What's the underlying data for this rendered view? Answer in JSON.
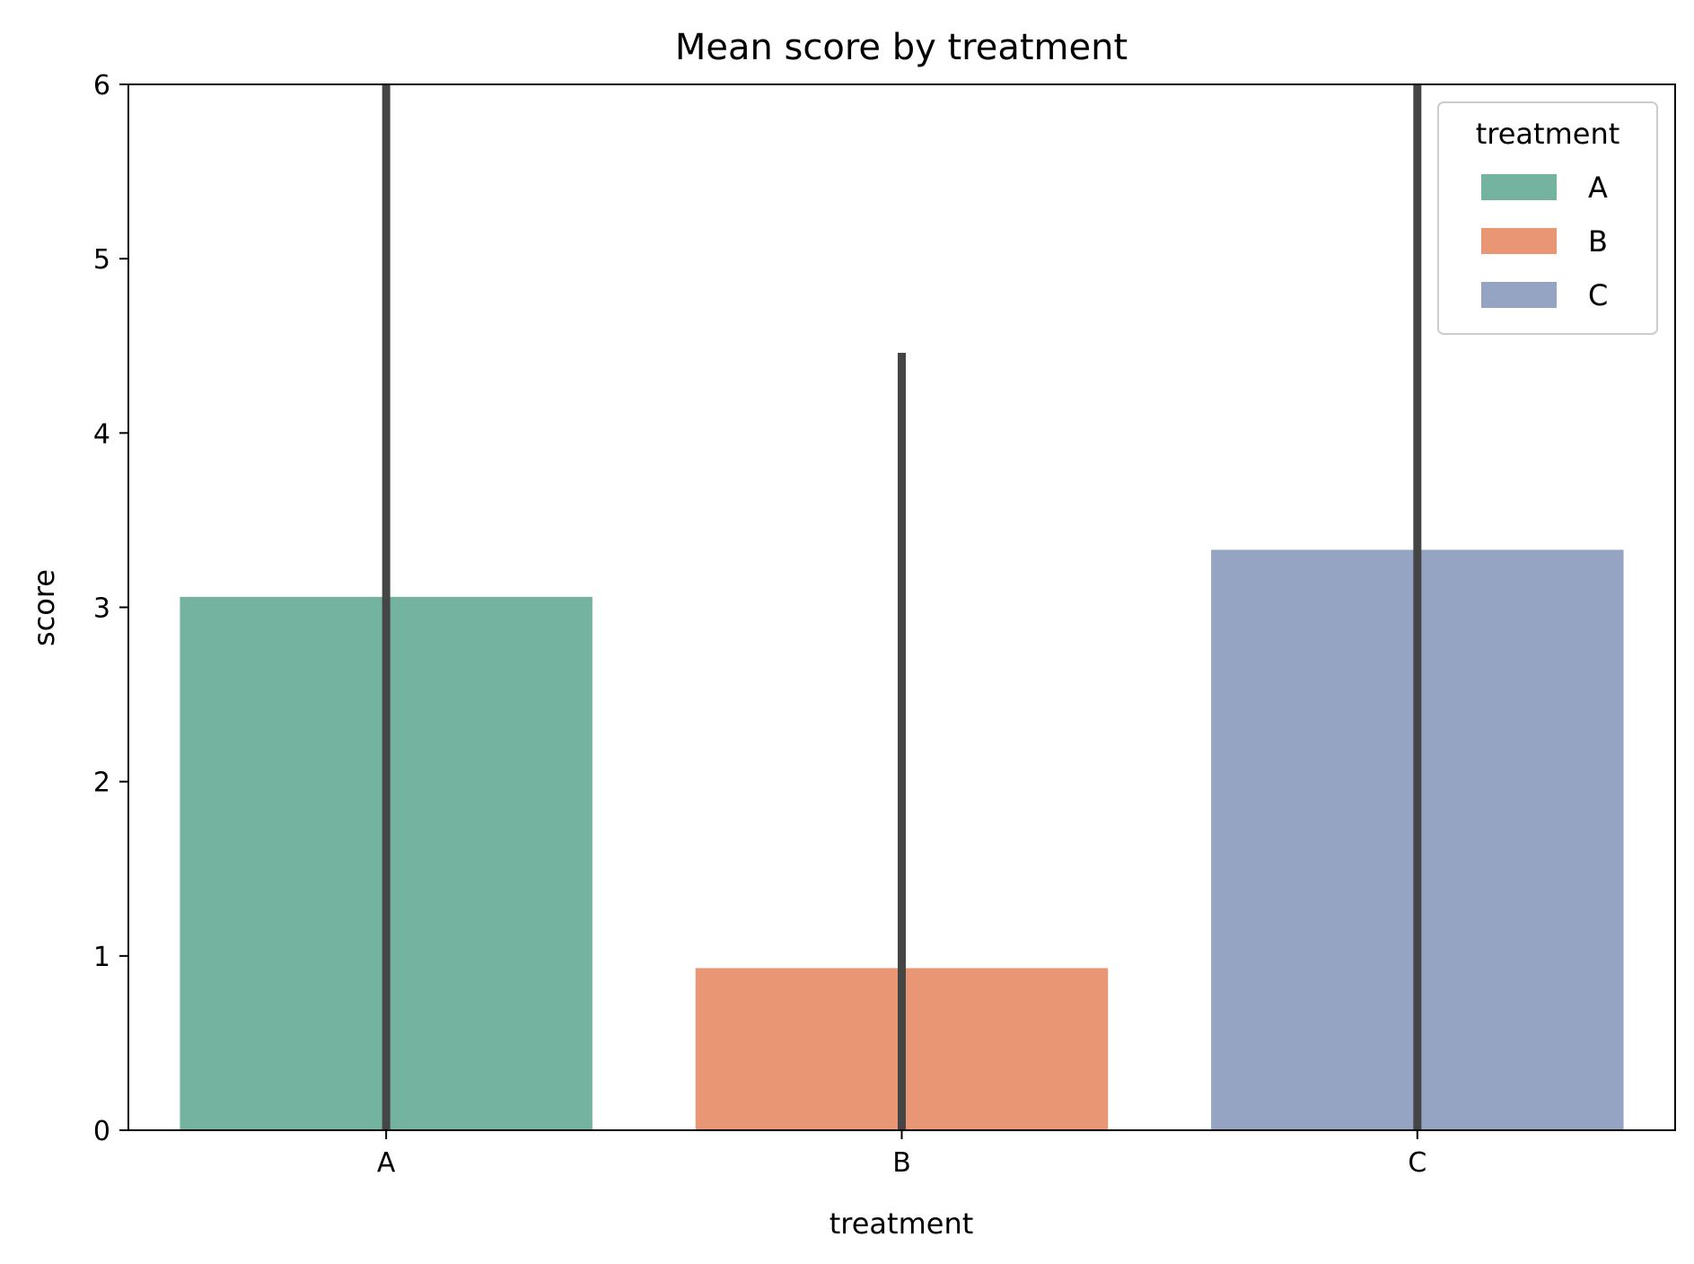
{
  "chart_data": {
    "type": "bar",
    "title": "Mean score by treatment",
    "xlabel": "treatment",
    "ylabel": "score",
    "categories": [
      "A",
      "B",
      "C"
    ],
    "values": [
      3.06,
      0.93,
      3.33
    ],
    "error_bars": [
      {
        "low": 0,
        "high": 6.0
      },
      {
        "low": 0,
        "high": 4.46
      },
      {
        "low": 0,
        "high": 6.0
      }
    ],
    "colors": [
      "#73b3a0",
      "#e99675",
      "#95a4c3"
    ],
    "error_bar_color": "#454545",
    "ylim": [
      0,
      6
    ],
    "yticks": [
      "0",
      "1",
      "2",
      "3",
      "4",
      "5",
      "6"
    ],
    "grid": false,
    "legend": {
      "title": "treatment",
      "position": "top-right",
      "entries": [
        "A",
        "B",
        "C"
      ]
    }
  }
}
